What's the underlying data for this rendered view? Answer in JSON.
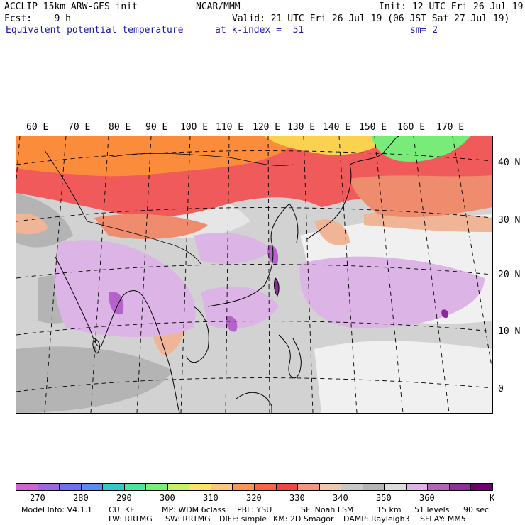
{
  "header": {
    "line1_left": "ACCLIP 15km ARW-GFS init",
    "line1_center": "NCAR/MMM",
    "line1_right": "Init: 12 UTC Fri 26 Jul 19",
    "line2_left": "Fcst:    9 h",
    "line2_right": "Valid: 21 UTC Fri 26 Jul 19 (06 JST Sat 27 Jul 19)",
    "line3_left": "Equivalent potential temperature",
    "line3_center": "at k-index =  51",
    "line3_right": "sm= 2"
  },
  "map": {
    "lon_labels": [
      "60 E",
      "70 E",
      "80 E",
      "90 E",
      "100 E",
      "110 E",
      "120 E",
      "130 E",
      "140 E",
      "150 E",
      "160 E",
      "170 E"
    ],
    "lat_labels": [
      "40 N",
      "30 N",
      "20 N",
      "10 N",
      "0"
    ],
    "colors": {
      "gray_dark": "#b4b4b4",
      "gray_light": "#d2d2d2",
      "white": "#f0f0f0",
      "lavender": "#dcb4e6",
      "purple": "#b464c8",
      "dark_purple": "#8c289b",
      "peach": "#f0b496",
      "salmon": "#f08c6e",
      "red": "#f05a5a",
      "orange": "#fa8c3c",
      "yellow": "#fad250",
      "green": "#78eb78"
    }
  },
  "colorbar": {
    "swatches": [
      "#cc66cc",
      "#a066dd",
      "#7070ee",
      "#5a8cf0",
      "#32c8c8",
      "#46e6a0",
      "#78f078",
      "#c8f064",
      "#fae664",
      "#fac878",
      "#fa9650",
      "#fa6446",
      "#f04646",
      "#f09682",
      "#f0c8aa",
      "#c8c8c8",
      "#b4b4b4",
      "#dcdcdc",
      "#dcb4e6",
      "#b464b4",
      "#8c3296",
      "#6e006e"
    ],
    "labels": [
      "270",
      "280",
      "290",
      "300",
      "310",
      "320",
      "330",
      "340",
      "350",
      "360",
      "K"
    ]
  },
  "footer": {
    "line1": [
      "Model Info: V4.1.1",
      "CU: KF",
      "MP: WDM 6class",
      "PBL: YSU",
      "SF: Noah LSM",
      "15 km",
      "51 levels",
      "90 sec"
    ],
    "line2": [
      "LW: RRTMG",
      "SW: RRTMG",
      "DIFF: simple",
      "KM: 2D Smagor",
      "DAMP: Rayleigh3",
      "SFLAY: MM5"
    ]
  }
}
